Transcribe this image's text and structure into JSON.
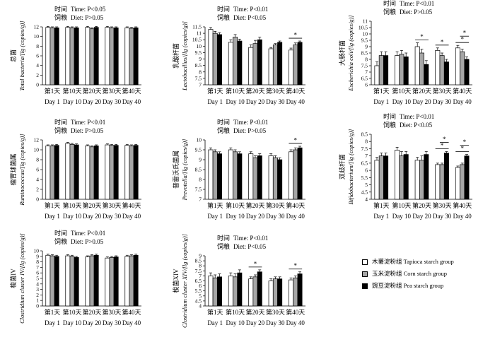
{
  "legend": {
    "items": [
      {
        "label": "木薯淀粉组 Tapioca starch group",
        "color": "#ffffff"
      },
      {
        "label": "玉米淀粉组 Corn starch group",
        "color": "#a6a6a6"
      },
      {
        "label": "豌豆淀粉组 Pea starch group",
        "color": "#000000"
      }
    ]
  },
  "chart_data": [
    {
      "type": "bar",
      "ylabel_zh": "总菌",
      "ylabel": "Total bacteria/[lg (copies/g)]",
      "ylim": [
        0,
        12
      ],
      "yticks": [
        0,
        2,
        4,
        6,
        8,
        10,
        12
      ],
      "categories_zh": [
        "第1天",
        "第10天",
        "第20天",
        "第30天",
        "第40天"
      ],
      "categories": [
        "Day 1",
        "Day 10",
        "Day 20",
        "Day 30",
        "Day 40"
      ],
      "stats": [
        {
          "label": "时间",
          "text": "Time: P<0.05"
        },
        {
          "label": "饲粮",
          "text": "Diet: P>0.05"
        }
      ],
      "series": [
        {
          "values": [
            11.9,
            11.9,
            11.9,
            11.9,
            11.8
          ],
          "errors": [
            0.2,
            0.2,
            0.2,
            0.2,
            0.2
          ]
        },
        {
          "values": [
            11.8,
            11.8,
            11.6,
            11.8,
            11.7
          ],
          "errors": [
            0.2,
            0.2,
            0.2,
            0.2,
            0.2
          ]
        },
        {
          "values": [
            11.8,
            11.8,
            11.9,
            11.8,
            11.8
          ],
          "errors": [
            0.2,
            0.2,
            0.2,
            0.2,
            0.2
          ]
        }
      ],
      "significance": []
    },
    {
      "type": "bar",
      "ylabel_zh": "乳酸杆菌",
      "ylabel": "Lactobacillus/[lg (copies/g)]",
      "ylim": [
        7,
        11.5
      ],
      "yticks": [
        7,
        7.5,
        8,
        8.5,
        9,
        9.5,
        10,
        10.5,
        11,
        11.5
      ],
      "categories_zh": [
        "第1天",
        "第10天",
        "第20天",
        "第30天",
        "第40天"
      ],
      "categories": [
        "Day 1",
        "Day 10",
        "Day 20",
        "Day 30",
        "Day 40"
      ],
      "stats": [
        {
          "label": "时间",
          "text": "Time: P<0.01"
        },
        {
          "label": "饲粮",
          "text": "Diet: P<0.05"
        }
      ],
      "series": [
        {
          "values": [
            11.3,
            10.3,
            9.9,
            9.8,
            9.7
          ],
          "errors": [
            0.15,
            0.2,
            0.2,
            0.1,
            0.15
          ]
        },
        {
          "values": [
            11.0,
            10.7,
            10.2,
            10.1,
            10.1
          ],
          "errors": [
            0.15,
            0.2,
            0.25,
            0.1,
            0.15
          ]
        },
        {
          "values": [
            10.9,
            10.4,
            10.5,
            10.3,
            10.3
          ],
          "errors": [
            0.15,
            0.15,
            0.2,
            0.1,
            0.1
          ]
        }
      ],
      "significance": [
        {
          "group": 4,
          "bars": [
            0,
            2
          ],
          "label": "*"
        }
      ]
    },
    {
      "type": "bar",
      "ylabel_zh": "大肠杆菌",
      "ylabel": "Escherichia coli/[lg (copies/g)]",
      "ylim": [
        6,
        11
      ],
      "yticks": [
        6,
        6.5,
        7,
        7.5,
        8,
        8.5,
        9,
        9.5,
        10,
        10.5,
        11
      ],
      "categories_zh": [
        "第1天",
        "第10天",
        "第20天",
        "第30天",
        "第40天"
      ],
      "categories": [
        "Day 1",
        "Day 10",
        "Day 20",
        "Day 30",
        "Day 40"
      ],
      "stats": [
        {
          "label": "时间",
          "text": "Time: P<0.01"
        },
        {
          "label": "饲粮",
          "text": "Diet: P>0.05"
        }
      ],
      "series": [
        {
          "values": [
            7.5,
            8.3,
            9.0,
            8.7,
            8.9
          ],
          "errors": [
            0.3,
            0.3,
            0.3,
            0.2,
            0.2
          ]
        },
        {
          "values": [
            8.3,
            8.4,
            8.5,
            8.3,
            8.6
          ],
          "errors": [
            0.3,
            0.3,
            0.3,
            0.2,
            0.2
          ]
        },
        {
          "values": [
            8.3,
            8.2,
            7.6,
            7.8,
            8.0
          ],
          "errors": [
            0.3,
            0.3,
            0.3,
            0.2,
            0.2
          ]
        }
      ],
      "significance": [
        {
          "group": 2,
          "bars": [
            0,
            2
          ],
          "label": "*"
        },
        {
          "group": 3,
          "bars": [
            0,
            2
          ],
          "label": "*"
        },
        {
          "group": 4,
          "bars": [
            0,
            2
          ],
          "label": "*"
        },
        {
          "group": 4,
          "bars": [
            1,
            2
          ],
          "label": "*"
        }
      ]
    },
    {
      "type": "bar",
      "ylabel_zh": "瘤胃球菌属",
      "ylabel": "Ruminococcus/[lg (copies/g)]",
      "ylim": [
        0,
        12
      ],
      "yticks": [
        0,
        2,
        4,
        6,
        8,
        10,
        12
      ],
      "categories_zh": [
        "第1天",
        "第10天",
        "第20天",
        "第30天",
        "第40天"
      ],
      "categories": [
        "Day 1",
        "Day 10",
        "Day 20",
        "Day 30",
        "Day 40"
      ],
      "stats": [
        {
          "label": "时间",
          "text": "Time: P<0.01"
        },
        {
          "label": "饲粮",
          "text": "Diet: P>0.05"
        }
      ],
      "series": [
        {
          "values": [
            10.8,
            11.3,
            10.8,
            11.0,
            10.9
          ],
          "errors": [
            0.2,
            0.2,
            0.2,
            0.2,
            0.2
          ]
        },
        {
          "values": [
            10.8,
            11.1,
            10.6,
            10.9,
            10.8
          ],
          "errors": [
            0.2,
            0.2,
            0.2,
            0.2,
            0.2
          ]
        },
        {
          "values": [
            10.9,
            11.0,
            10.8,
            10.9,
            10.9
          ],
          "errors": [
            0.2,
            0.2,
            0.2,
            0.2,
            0.2
          ]
        }
      ],
      "significance": []
    },
    {
      "type": "bar",
      "ylabel_zh": "普雷沃氏菌属",
      "ylabel": "Prevotella/[lg (copies/g)]",
      "ylim": [
        7,
        10
      ],
      "yticks": [
        7,
        7.5,
        8,
        8.5,
        9,
        9.5,
        10
      ],
      "categories_zh": [
        "第1天",
        "第10天",
        "第20天",
        "第30天",
        "第40天"
      ],
      "categories": [
        "Day 1",
        "Day 10",
        "Day 20",
        "Day 30",
        "Day 40"
      ],
      "stats": [
        {
          "label": "时间",
          "text": "Time: P<0.01"
        },
        {
          "label": "饲粮",
          "text": "Diet: P>0.05"
        }
      ],
      "series": [
        {
          "values": [
            9.5,
            9.5,
            9.3,
            9.2,
            9.4
          ],
          "errors": [
            0.1,
            0.1,
            0.1,
            0.1,
            0.1
          ]
        },
        {
          "values": [
            9.4,
            9.4,
            9.1,
            9.1,
            9.5
          ],
          "errors": [
            0.1,
            0.1,
            0.1,
            0.1,
            0.1
          ]
        },
        {
          "values": [
            9.3,
            9.3,
            9.2,
            9.0,
            9.6
          ],
          "errors": [
            0.1,
            0.1,
            0.1,
            0.1,
            0.08
          ]
        }
      ],
      "significance": [
        {
          "group": 4,
          "bars": [
            0,
            2
          ],
          "label": "*"
        }
      ]
    },
    {
      "type": "bar",
      "ylabel_zh": "双歧杆菌",
      "ylabel": "Bifidobacterium/[lg (copies/g)]",
      "ylim": [
        4,
        8.5
      ],
      "yticks": [
        4,
        4.5,
        5,
        5.5,
        6,
        6.5,
        7,
        7.5,
        8,
        8.5
      ],
      "categories_zh": [
        "第1天",
        "第10天",
        "第20天",
        "第30天",
        "第40天"
      ],
      "categories": [
        "Day 1",
        "Day 10",
        "Day 20",
        "Day 30",
        "Day 40"
      ],
      "stats": [
        {
          "label": "时间",
          "text": "Time: P<0.01"
        },
        {
          "label": "饲粮",
          "text": "Diet: P<0.05"
        }
      ],
      "series": [
        {
          "values": [
            6.7,
            7.4,
            6.7,
            6.4,
            6.2
          ],
          "errors": [
            0.2,
            0.2,
            0.2,
            0.1,
            0.1
          ]
        },
        {
          "values": [
            7.0,
            7.0,
            6.7,
            6.4,
            6.4
          ],
          "errors": [
            0.2,
            0.3,
            0.3,
            0.1,
            0.1
          ]
        },
        {
          "values": [
            7.0,
            7.1,
            7.1,
            7.2,
            7.0
          ],
          "errors": [
            0.2,
            0.2,
            0.2,
            0.1,
            0.1
          ]
        }
      ],
      "significance": [
        {
          "group": 3,
          "bars": [
            0,
            2
          ],
          "label": "*"
        },
        {
          "group": 3,
          "bars": [
            1,
            2
          ],
          "label": "*"
        },
        {
          "group": 4,
          "bars": [
            0,
            2
          ],
          "label": "*"
        },
        {
          "group": 4,
          "bars": [
            1,
            2
          ],
          "label": "*"
        }
      ]
    },
    {
      "type": "bar",
      "ylabel_zh": "梭菌IV",
      "ylabel": "Clostridium cluster IV/[lg (copies/g)]",
      "ylim": [
        0,
        10
      ],
      "yticks": [
        0,
        1,
        2,
        3,
        4,
        5,
        6,
        7,
        8,
        9,
        10
      ],
      "categories_zh": [
        "第1天",
        "第10天",
        "第20天",
        "第30天",
        "第40天"
      ],
      "categories": [
        "Day 1",
        "Day 10",
        "Day 20",
        "Day 30",
        "Day 40"
      ],
      "stats": [
        {
          "label": "时间",
          "text": "Time: P<0.01"
        },
        {
          "label": "饲粮",
          "text": "Diet: P>0.05"
        }
      ],
      "series": [
        {
          "values": [
            9.2,
            9.1,
            8.9,
            8.7,
            9.0
          ],
          "errors": [
            0.2,
            0.2,
            0.2,
            0.2,
            0.2
          ]
        },
        {
          "values": [
            9.1,
            9.0,
            9.1,
            8.8,
            9.1
          ],
          "errors": [
            0.2,
            0.2,
            0.2,
            0.2,
            0.2
          ]
        },
        {
          "values": [
            9.0,
            8.8,
            9.2,
            8.9,
            9.2
          ],
          "errors": [
            0.2,
            0.2,
            0.2,
            0.2,
            0.2
          ]
        }
      ],
      "significance": []
    },
    {
      "type": "bar",
      "ylabel_zh": "梭菌XIV",
      "ylabel": "Clostridium cluster XIV/[lg (copies/g)]",
      "ylim": [
        4,
        9
      ],
      "yticks": [
        4,
        4.5,
        5,
        5.5,
        6,
        6.5,
        7,
        7.5,
        8,
        8.5,
        9
      ],
      "categories_zh": [
        "第1天",
        "第10天",
        "第20天",
        "第30天",
        "第40天"
      ],
      "categories": [
        "Day 1",
        "Day 10",
        "Day 20",
        "Day 30",
        "Day 40"
      ],
      "stats": [
        {
          "label": "时间",
          "text": "Time: P<0.01"
        },
        {
          "label": "饲粮",
          "text": "Diet: P<0.05"
        }
      ],
      "series": [
        {
          "values": [
            7.0,
            7.0,
            6.7,
            6.5,
            6.6
          ],
          "errors": [
            0.3,
            0.3,
            0.2,
            0.2,
            0.2
          ]
        },
        {
          "values": [
            6.8,
            6.9,
            6.9,
            6.7,
            6.8
          ],
          "errors": [
            0.3,
            0.3,
            0.2,
            0.2,
            0.2
          ]
        },
        {
          "values": [
            6.9,
            7.3,
            7.4,
            6.7,
            7.2
          ],
          "errors": [
            0.3,
            0.3,
            0.2,
            0.2,
            0.2
          ]
        }
      ],
      "significance": [
        {
          "group": 2,
          "bars": [
            0,
            2
          ],
          "label": "*"
        },
        {
          "group": 4,
          "bars": [
            0,
            2
          ],
          "label": "*"
        }
      ]
    }
  ]
}
